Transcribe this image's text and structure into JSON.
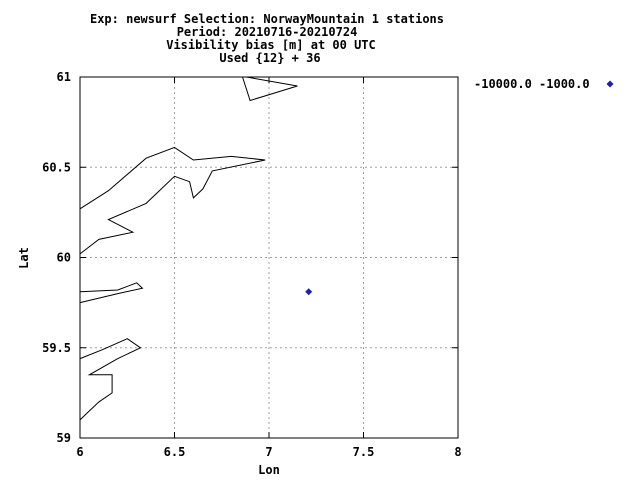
{
  "header": {
    "line1": "Exp: newsurf   Selection: NorwayMountain      1 stations",
    "line2": "Period: 20210716-20210724",
    "line3": "Visibility bias [m] at  00 UTC",
    "line4": "Used {12} + 36"
  },
  "chart_data": {
    "type": "scatter",
    "title": "Visibility bias [m] at  00 UTC",
    "xlabel": "Lon",
    "ylabel": "Lat",
    "xlim": [
      6,
      8
    ],
    "ylim": [
      59,
      61
    ],
    "xticks": [
      "6",
      "6.5",
      "7",
      "7.5",
      "8"
    ],
    "yticks": [
      "59",
      "59.5",
      "60",
      "60.5",
      "61"
    ],
    "grid": true,
    "legend_position": "right",
    "series": [
      {
        "name": "-10000.0 -1000.0",
        "color": "#1f1fb4",
        "marker": "diamond",
        "points": [
          {
            "x": 7.21,
            "y": 59.81
          }
        ]
      }
    ],
    "coastlines": [
      [
        [
          6.86,
          61.0
        ],
        [
          6.9,
          60.87
        ],
        [
          7.15,
          60.95
        ],
        [
          6.88,
          61.0
        ]
      ],
      [
        [
          6.0,
          60.27
        ],
        [
          6.15,
          60.37
        ],
        [
          6.35,
          60.55
        ],
        [
          6.5,
          60.61
        ],
        [
          6.6,
          60.54
        ],
        [
          6.8,
          60.56
        ],
        [
          6.98,
          60.54
        ],
        [
          6.7,
          60.48
        ],
        [
          6.65,
          60.38
        ],
        [
          6.6,
          60.33
        ],
        [
          6.58,
          60.42
        ],
        [
          6.5,
          60.45
        ],
        [
          6.35,
          60.3
        ],
        [
          6.15,
          60.21
        ],
        [
          6.28,
          60.14
        ],
        [
          6.1,
          60.1
        ],
        [
          6.0,
          60.02
        ]
      ],
      [
        [
          6.0,
          59.81
        ],
        [
          6.2,
          59.82
        ],
        [
          6.3,
          59.86
        ],
        [
          6.33,
          59.83
        ],
        [
          6.2,
          59.8
        ],
        [
          6.0,
          59.75
        ]
      ],
      [
        [
          6.0,
          59.44
        ],
        [
          6.12,
          59.49
        ],
        [
          6.25,
          59.55
        ],
        [
          6.32,
          59.5
        ],
        [
          6.2,
          59.44
        ],
        [
          6.05,
          59.35
        ],
        [
          6.17,
          59.35
        ],
        [
          6.17,
          59.25
        ],
        [
          6.1,
          59.2
        ],
        [
          6.05,
          59.15
        ],
        [
          6.0,
          59.1
        ]
      ]
    ]
  }
}
